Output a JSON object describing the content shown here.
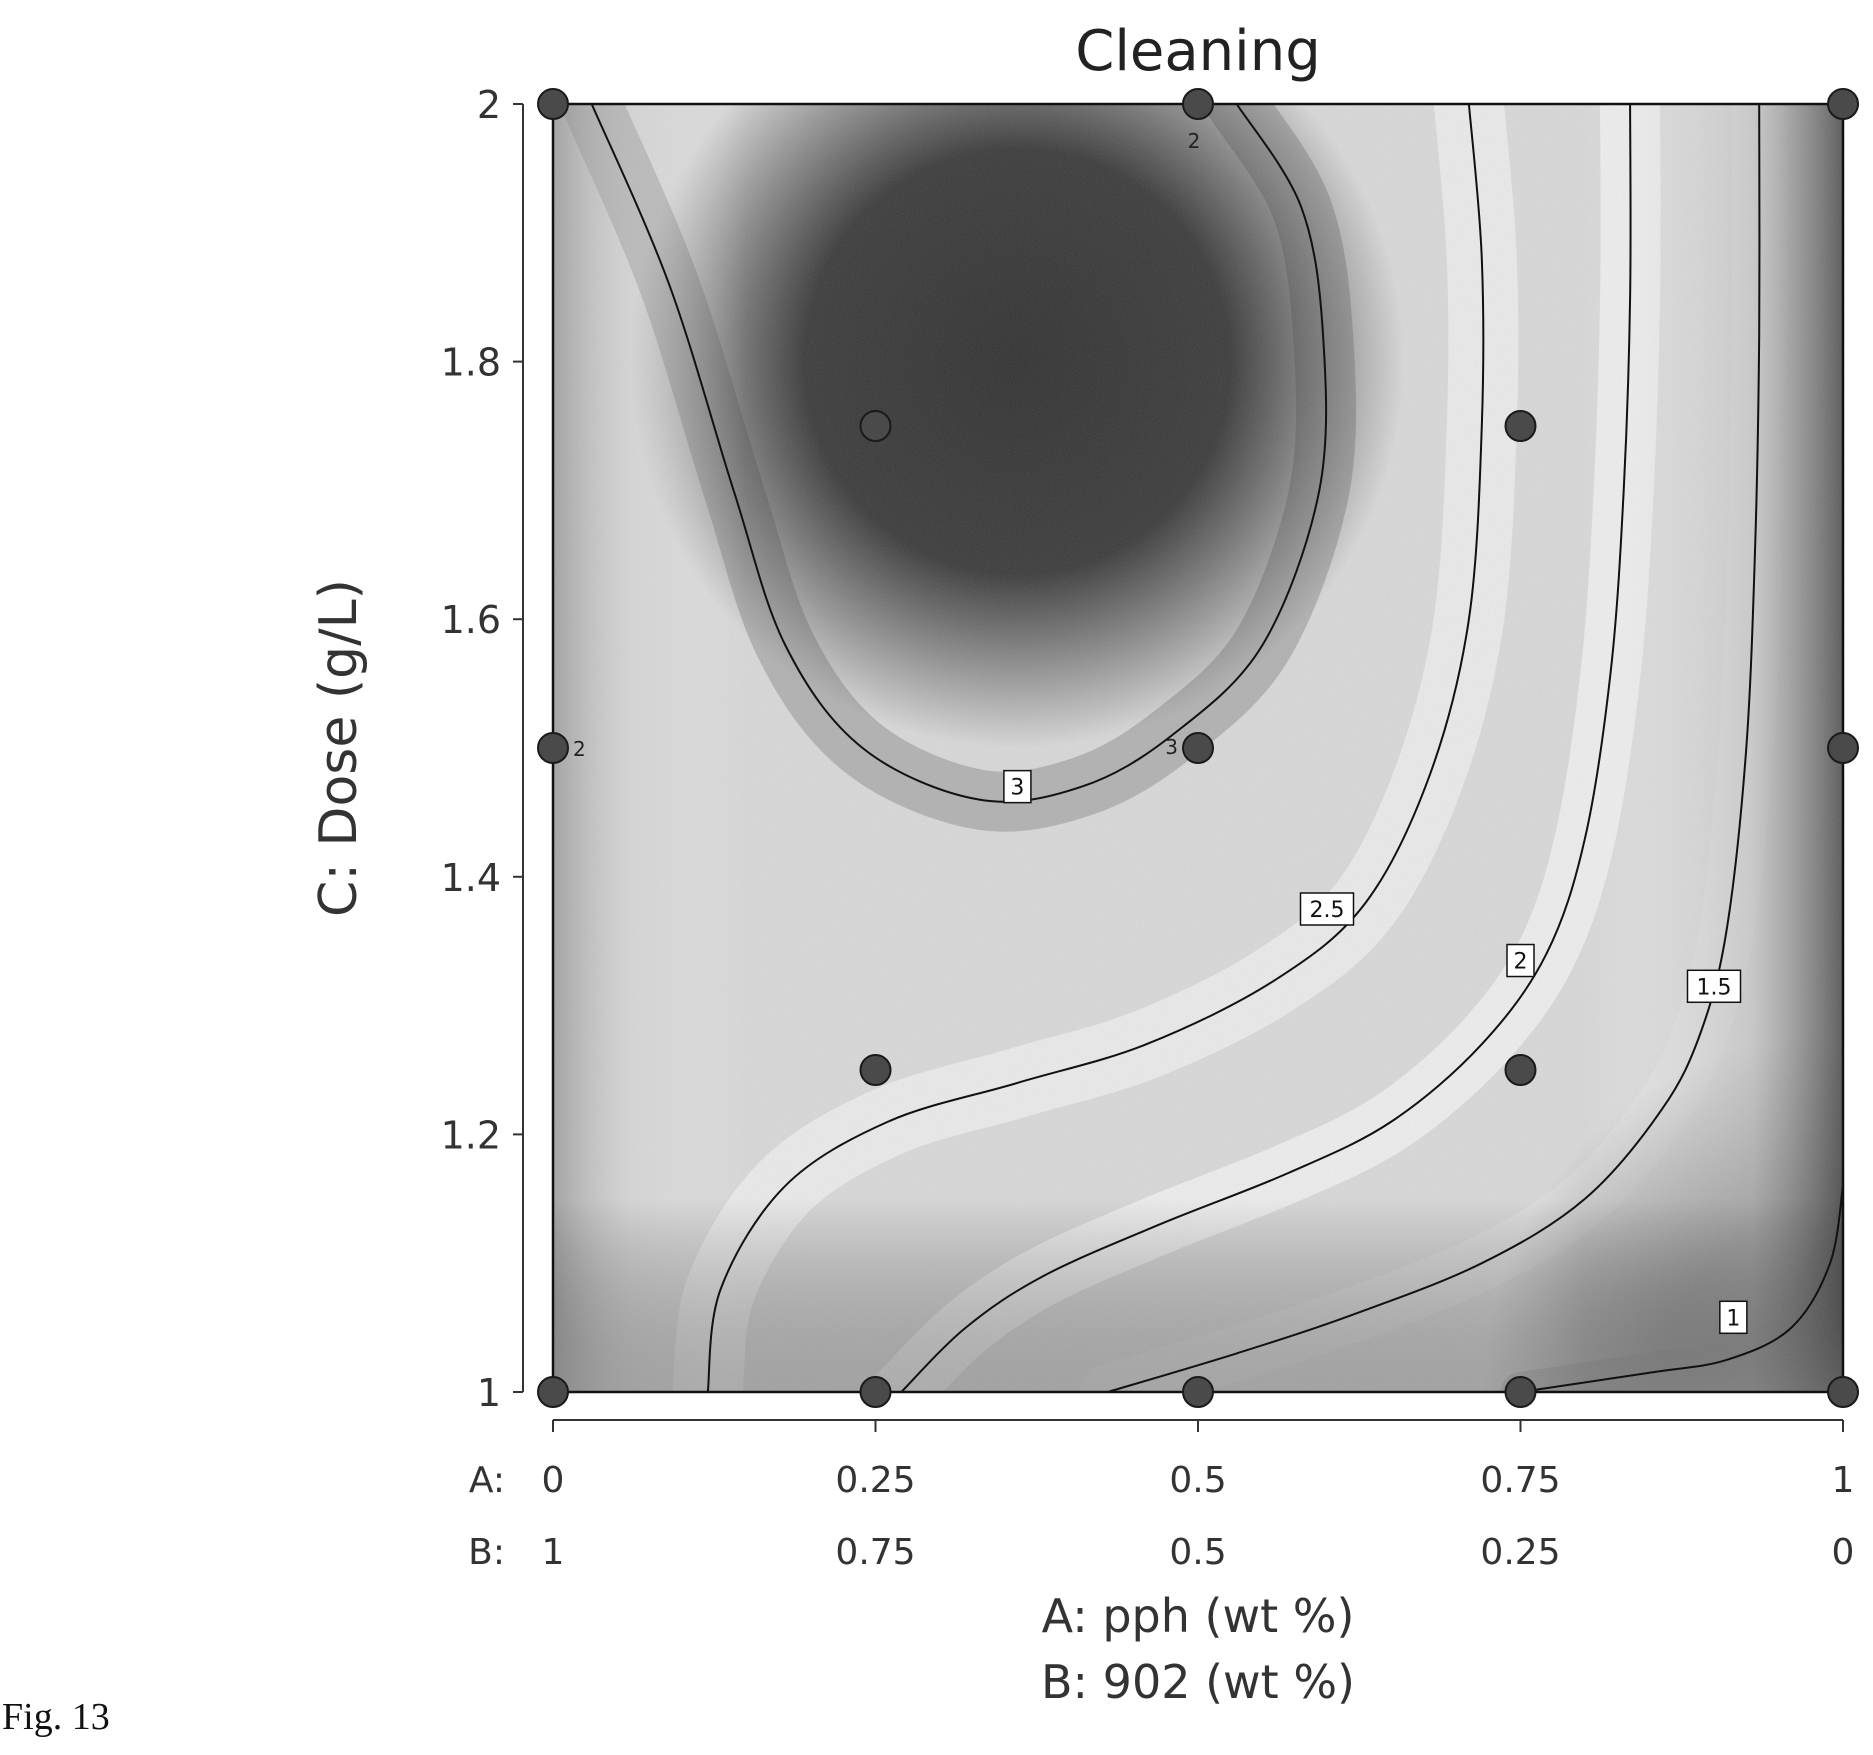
{
  "figure_label": "Fig. 13",
  "chart_data": {
    "type": "contour",
    "title": "Cleaning",
    "xlabel_a": "A: pph (wt %)",
    "xlabel_b": "B: 902 (wt %)",
    "ylabel": "C: Dose (g/L)",
    "x_tick_prefix_a": "A:",
    "x_tick_prefix_b": "B:",
    "xlim": [
      0,
      1
    ],
    "ylim": [
      1,
      2
    ],
    "x_ticks_a": [
      "0",
      "0.25",
      "0.5",
      "0.75",
      "1"
    ],
    "x_ticks_b": [
      "1",
      "0.75",
      "0.5",
      "0.25",
      "0"
    ],
    "x_tick_values": [
      0,
      0.25,
      0.5,
      0.75,
      1
    ],
    "y_ticks": [
      "1",
      "1.2",
      "1.4",
      "1.6",
      "1.8",
      "2"
    ],
    "y_tick_values": [
      1,
      1.2,
      1.4,
      1.6,
      1.8,
      2
    ],
    "design_points": [
      {
        "a": 0,
        "c": 2
      },
      {
        "a": 0.5,
        "c": 2
      },
      {
        "a": 1,
        "c": 2
      },
      {
        "a": 0.25,
        "c": 1.75
      },
      {
        "a": 0.75,
        "c": 1.75
      },
      {
        "a": 0,
        "c": 1.5
      },
      {
        "a": 0.5,
        "c": 1.5
      },
      {
        "a": 1,
        "c": 1.5
      },
      {
        "a": 0.25,
        "c": 1.25
      },
      {
        "a": 0.75,
        "c": 1.25
      },
      {
        "a": 0,
        "c": 1
      },
      {
        "a": 0.25,
        "c": 1
      },
      {
        "a": 0.5,
        "c": 1
      },
      {
        "a": 0.75,
        "c": 1
      },
      {
        "a": 1,
        "c": 1
      }
    ],
    "point_replicates": [
      {
        "a": 0.5,
        "c": 2,
        "label": "2"
      },
      {
        "a": 0,
        "c": 1.5,
        "label": "2"
      },
      {
        "a": 0.5,
        "c": 1.5,
        "label": "3"
      }
    ],
    "contours": [
      {
        "level": "3",
        "points": [
          [
            0.03,
            2
          ],
          [
            0.09,
            1.86
          ],
          [
            0.14,
            1.7
          ],
          [
            0.18,
            1.58
          ],
          [
            0.24,
            1.5
          ],
          [
            0.33,
            1.46
          ],
          [
            0.41,
            1.47
          ],
          [
            0.48,
            1.51
          ],
          [
            0.55,
            1.58
          ],
          [
            0.594,
            1.7
          ],
          [
            0.597,
            1.82
          ],
          [
            0.58,
            1.92
          ],
          [
            0.53,
            2
          ]
        ],
        "label_at": [
          0.36,
          1.47
        ]
      },
      {
        "level": "2.5",
        "points": [
          [
            0.12,
            1
          ],
          [
            0.13,
            1.08
          ],
          [
            0.18,
            1.16
          ],
          [
            0.26,
            1.21
          ],
          [
            0.36,
            1.24
          ],
          [
            0.46,
            1.27
          ],
          [
            0.56,
            1.32
          ],
          [
            0.63,
            1.38
          ],
          [
            0.68,
            1.48
          ],
          [
            0.71,
            1.6
          ],
          [
            0.72,
            1.75
          ],
          [
            0.72,
            1.88
          ],
          [
            0.71,
            2
          ]
        ],
        "label_at": [
          0.6,
          1.375
        ]
      },
      {
        "level": "2",
        "points": [
          [
            0.27,
            1
          ],
          [
            0.32,
            1.05
          ],
          [
            0.38,
            1.09
          ],
          [
            0.47,
            1.13
          ],
          [
            0.57,
            1.17
          ],
          [
            0.65,
            1.21
          ],
          [
            0.72,
            1.27
          ],
          [
            0.77,
            1.34
          ],
          [
            0.8,
            1.43
          ],
          [
            0.82,
            1.56
          ],
          [
            0.83,
            1.7
          ],
          [
            0.835,
            1.85
          ],
          [
            0.835,
            2
          ]
        ],
        "label_at": [
          0.75,
          1.335
        ]
      },
      {
        "level": "1.5",
        "points": [
          [
            0.43,
            1
          ],
          [
            0.53,
            1.03
          ],
          [
            0.62,
            1.06
          ],
          [
            0.72,
            1.1
          ],
          [
            0.8,
            1.15
          ],
          [
            0.86,
            1.22
          ],
          [
            0.89,
            1.28
          ],
          [
            0.91,
            1.36
          ],
          [
            0.925,
            1.5
          ],
          [
            0.932,
            1.66
          ],
          [
            0.935,
            1.82
          ],
          [
            0.935,
            2
          ]
        ],
        "label_at": [
          0.9,
          1.315
        ]
      },
      {
        "level": "1",
        "points": [
          [
            0.75,
            1
          ],
          [
            0.85,
            1.015
          ],
          [
            0.91,
            1.025
          ],
          [
            0.96,
            1.05
          ],
          [
            0.99,
            1.1
          ],
          [
            1.0,
            1.16
          ]
        ],
        "label_at": [
          0.915,
          1.058
        ]
      }
    ]
  }
}
